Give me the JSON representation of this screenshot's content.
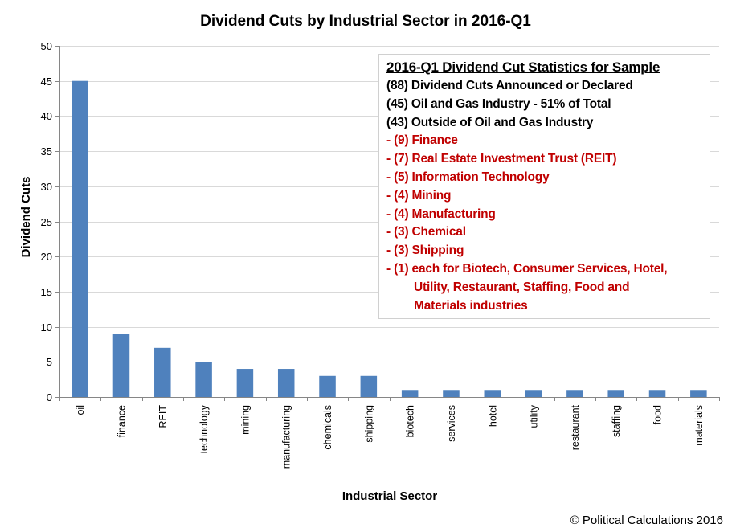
{
  "chart_data": {
    "type": "bar",
    "title": "Dividend Cuts by Industrial Sector in 2016-Q1",
    "xlabel": "Industrial Sector",
    "ylabel": "Dividend Cuts",
    "ylim": [
      0,
      50
    ],
    "yticks": [
      0,
      5,
      10,
      15,
      20,
      25,
      30,
      35,
      40,
      45,
      50
    ],
    "grid": true,
    "categories": [
      "oil",
      "finance",
      "REIT",
      "technology",
      "mining",
      "manufacturing",
      "chemicals",
      "shipping",
      "biotech",
      "services",
      "hotel",
      "utility",
      "restaurant",
      "staffing",
      "food",
      "materials"
    ],
    "values": [
      45,
      9,
      7,
      5,
      4,
      4,
      3,
      3,
      1,
      1,
      1,
      1,
      1,
      1,
      1,
      1
    ],
    "bar_color": "#4f81bd",
    "legend": "none"
  },
  "annotation": {
    "heading": "2016-Q1 Dividend  Cut Statistics  for Sample",
    "lines": [
      {
        "text": "(88) Dividend Cuts Announced or Declared",
        "color": "black"
      },
      {
        "text": "(45) Oil and Gas Industry -  51% of Total",
        "color": "black"
      },
      {
        "text": "(43) Outside of Oil and Gas Industry",
        "color": "black"
      },
      {
        "text": "- (9) Finance",
        "color": "red"
      },
      {
        "text": "- (7) Real Estate Investment Trust (REIT)",
        "color": "red"
      },
      {
        "text": "- (5) Information Technology",
        "color": "red"
      },
      {
        "text": "- (4) Mining",
        "color": "red"
      },
      {
        "text": "- (4) Manufacturing",
        "color": "red"
      },
      {
        "text": "- (3) Chemical",
        "color": "red"
      },
      {
        "text": "- (3) Shipping",
        "color": "red"
      },
      {
        "text": "- (1) each for Biotech, Consumer Services, Hotel,",
        "color": "red"
      },
      {
        "text": "Utility, Restaurant, Staffing, Food and",
        "color": "red",
        "indent": true
      },
      {
        "text": "Materials industries",
        "color": "red",
        "indent": true
      }
    ],
    "colors": {
      "black": "#000000",
      "red": "#c00000"
    }
  },
  "credit": "© Political Calculations 2016"
}
